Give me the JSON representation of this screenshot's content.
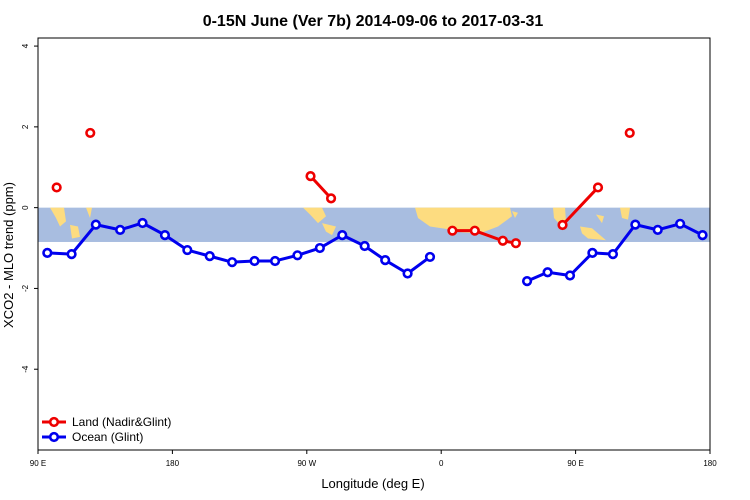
{
  "chart_data": {
    "type": "line",
    "title": "0-15N June (Ver 7b)   2014-09-06 to 2017-03-31",
    "xlabel": "Longitude (deg E)",
    "ylabel": "XCO2 - MLO trend (ppm)",
    "xlim": [
      90,
      450
    ],
    "ylim": [
      -6,
      4.2
    ],
    "x_ticks": [
      {
        "value": 90,
        "label": "90 E"
      },
      {
        "value": 162,
        "label": "180"
      },
      {
        "value": 234,
        "label": "90 W"
      },
      {
        "value": 306,
        "label": "0"
      },
      {
        "value": 378,
        "label": "90 E"
      },
      {
        "value": 450,
        "label": "180"
      }
    ],
    "y_ticks": [
      {
        "value": -4,
        "label": "-4"
      },
      {
        "value": -2,
        "label": "-2"
      },
      {
        "value": 0,
        "label": "0"
      },
      {
        "value": 2,
        "label": "2"
      },
      {
        "value": 4,
        "label": "4"
      }
    ],
    "latitude_band": {
      "ymin": -0.85,
      "ymax": 0,
      "ocean_color": "#a8bde0",
      "land_color": "#fddc80"
    },
    "series": [
      {
        "name": "Land (Nadir&Glint)",
        "color": "#ee0000",
        "segments": [
          [
            [
              100,
              0.5
            ]
          ],
          [
            [
              118,
              1.85
            ]
          ],
          [
            [
              236,
              0.78
            ],
            [
              247,
              0.23
            ]
          ],
          [
            [
              312,
              -0.57
            ],
            [
              324,
              -0.57
            ],
            [
              339,
              -0.82
            ],
            [
              346,
              -0.88
            ]
          ],
          [
            [
              371,
              -0.43
            ],
            [
              390,
              0.5
            ]
          ],
          [
            [
              407,
              1.85
            ]
          ]
        ]
      },
      {
        "name": "Ocean (Glint)",
        "color": "#0000ee",
        "segments": [
          [
            [
              95,
              -1.12
            ],
            [
              108,
              -1.15
            ],
            [
              121,
              -0.42
            ],
            [
              134,
              -0.55
            ],
            [
              146,
              -0.38
            ],
            [
              158,
              -0.68
            ],
            [
              170,
              -1.05
            ],
            [
              182,
              -1.2
            ],
            [
              194,
              -1.35
            ],
            [
              206,
              -1.32
            ],
            [
              217,
              -1.32
            ],
            [
              229,
              -1.18
            ],
            [
              241,
              -1.0
            ],
            [
              253,
              -0.68
            ],
            [
              265,
              -0.95
            ],
            [
              276,
              -1.3
            ],
            [
              288,
              -1.63
            ],
            [
              300,
              -1.22
            ]
          ],
          [
            [
              352,
              -1.82
            ],
            [
              363,
              -1.6
            ],
            [
              375,
              -1.68
            ],
            [
              387,
              -1.12
            ],
            [
              398,
              -1.15
            ],
            [
              410,
              -0.42
            ],
            [
              422,
              -0.55
            ],
            [
              434,
              -0.4
            ],
            [
              446,
              -0.68
            ]
          ]
        ]
      }
    ],
    "legend_position": "bottom-left",
    "grid": false
  }
}
